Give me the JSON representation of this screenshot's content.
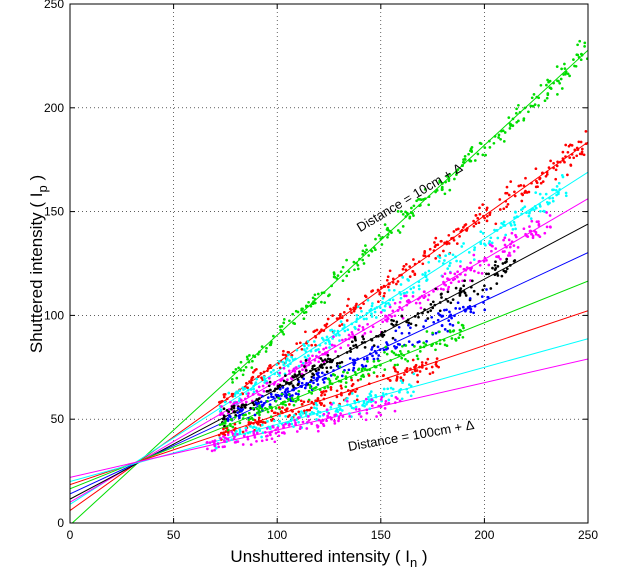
{
  "chart_data": {
    "type": "scatter",
    "title": "",
    "xlabel": "Unshuttered intensity ( I",
    "xlabel_sub": "n",
    "xlabel_end": " )",
    "ylabel": "Shuttered intensity ( I",
    "ylabel_sub": "p",
    "ylabel_end": " )",
    "xlim": [
      0,
      250
    ],
    "ylim": [
      0,
      250
    ],
    "xticks": [
      0,
      50,
      100,
      150,
      200,
      250
    ],
    "yticks": [
      0,
      50,
      100,
      150,
      200,
      250
    ],
    "grid": true,
    "annotations": [
      {
        "text": "Distance = 10cm + Δ",
        "x": 165,
        "y": 155,
        "angle_deg": -31
      },
      {
        "text": "Distance = 100cm + Δ",
        "x": 165,
        "y": 40,
        "angle_deg": -10
      }
    ],
    "pivot": {
      "x": 35,
      "y": 30
    },
    "series": [
      {
        "color": "#00dd00",
        "slope": 0.915,
        "intercept": -1.0,
        "xmin": 78,
        "xmax": 250
      },
      {
        "color": "#ff0000",
        "slope": 0.71,
        "intercept": 6.0,
        "xmin": 72,
        "xmax": 250
      },
      {
        "color": "#00ffff",
        "slope": 0.64,
        "intercept": 9.0,
        "xmin": 72,
        "xmax": 240
      },
      {
        "color": "#ff00ff",
        "slope": 0.585,
        "intercept": 10.0,
        "xmin": 72,
        "xmax": 232
      },
      {
        "color": "#000000",
        "slope": 0.53,
        "intercept": 11.5,
        "xmin": 73,
        "xmax": 215
      },
      {
        "color": "#0000ff",
        "slope": 0.465,
        "intercept": 14.0,
        "xmin": 74,
        "xmax": 203
      },
      {
        "color": "#00dd00",
        "slope": 0.4,
        "intercept": 16.5,
        "xmin": 71,
        "xmax": 190
      },
      {
        "color": "#ff0000",
        "slope": 0.335,
        "intercept": 18.5,
        "xmin": 72,
        "xmax": 178
      },
      {
        "color": "#00ffff",
        "slope": 0.275,
        "intercept": 20.0,
        "xmin": 70,
        "xmax": 168
      },
      {
        "color": "#ff00ff",
        "slope": 0.228,
        "intercept": 22.0,
        "xmin": 66,
        "xmax": 160
      }
    ]
  }
}
